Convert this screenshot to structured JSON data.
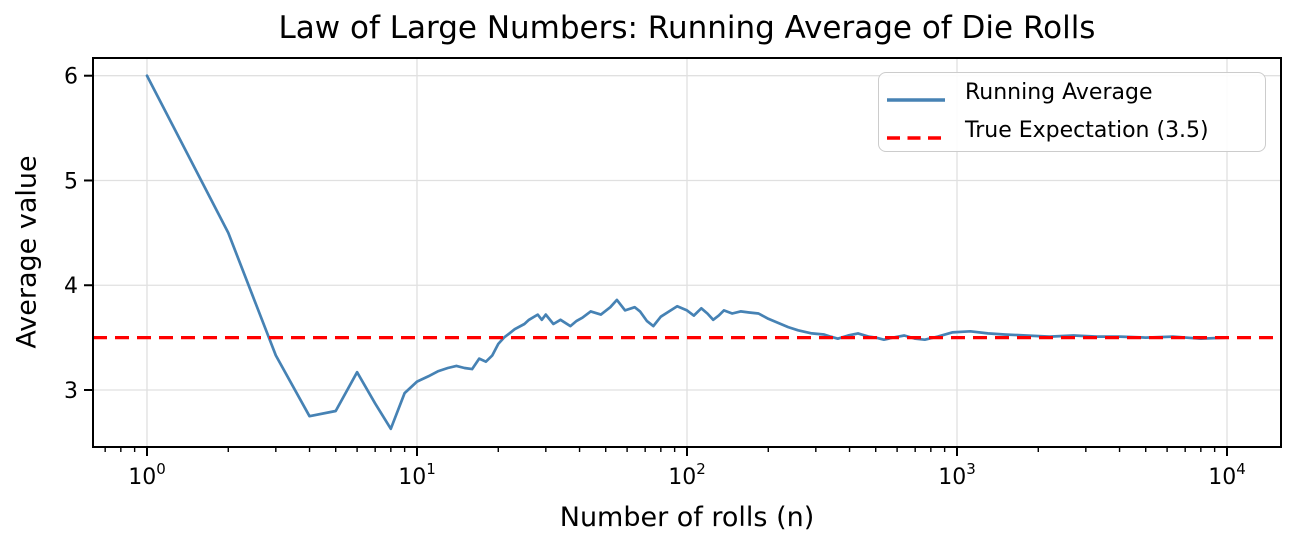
{
  "chart_data": {
    "type": "line",
    "title": "Law of Large Numbers: Running Average of Die Rolls",
    "xlabel": "Number of rolls (n)",
    "ylabel": "Average value",
    "x_scale": "log",
    "xlim": [
      0.631,
      15849
    ],
    "ylim": [
      2.456,
      6.169
    ],
    "grid": true,
    "x_ticks": [
      {
        "value": 1,
        "base": "10",
        "exp": "0"
      },
      {
        "value": 10,
        "base": "10",
        "exp": "1"
      },
      {
        "value": 100,
        "base": "10",
        "exp": "2"
      },
      {
        "value": 1000,
        "base": "10",
        "exp": "3"
      },
      {
        "value": 10000,
        "base": "10",
        "exp": "4"
      }
    ],
    "y_ticks": [
      3,
      4,
      5,
      6
    ],
    "legend": {
      "position": "upper right",
      "entries": [
        {
          "label": "Running Average",
          "color": "#4682b4",
          "line_style": "solid"
        },
        {
          "label": "True Expectation (3.5)",
          "color": "#ff0000",
          "line_style": "dashed"
        }
      ]
    },
    "series": [
      {
        "name": "Running Average",
        "color": "#4682b4",
        "line_style": "solid",
        "points": [
          [
            1,
            6.0
          ],
          [
            2,
            4.5
          ],
          [
            3,
            3.33
          ],
          [
            4,
            2.75
          ],
          [
            5,
            2.8
          ],
          [
            6,
            3.17
          ],
          [
            7,
            2.87
          ],
          [
            8,
            2.63
          ],
          [
            9,
            2.97
          ],
          [
            10,
            3.08
          ],
          [
            11,
            3.13
          ],
          [
            12,
            3.18
          ],
          [
            13,
            3.21
          ],
          [
            14,
            3.23
          ],
          [
            15,
            3.21
          ],
          [
            16,
            3.2
          ],
          [
            17,
            3.3
          ],
          [
            18,
            3.27
          ],
          [
            19,
            3.33
          ],
          [
            20,
            3.44
          ],
          [
            21,
            3.5
          ],
          [
            22,
            3.54
          ],
          [
            23,
            3.58
          ],
          [
            25,
            3.63
          ],
          [
            26,
            3.67
          ],
          [
            28,
            3.72
          ],
          [
            29,
            3.67
          ],
          [
            30,
            3.72
          ],
          [
            32,
            3.63
          ],
          [
            34,
            3.67
          ],
          [
            37,
            3.61
          ],
          [
            39,
            3.66
          ],
          [
            41,
            3.69
          ],
          [
            44,
            3.75
          ],
          [
            48,
            3.72
          ],
          [
            52,
            3.79
          ],
          [
            55,
            3.86
          ],
          [
            59,
            3.76
          ],
          [
            64,
            3.79
          ],
          [
            67,
            3.75
          ],
          [
            71,
            3.66
          ],
          [
            75,
            3.61
          ],
          [
            80,
            3.7
          ],
          [
            87,
            3.76
          ],
          [
            92,
            3.8
          ],
          [
            100,
            3.76
          ],
          [
            106,
            3.71
          ],
          [
            113,
            3.78
          ],
          [
            119,
            3.73
          ],
          [
            125,
            3.67
          ],
          [
            131,
            3.71
          ],
          [
            137,
            3.76
          ],
          [
            147,
            3.73
          ],
          [
            158,
            3.75
          ],
          [
            170,
            3.74
          ],
          [
            184,
            3.73
          ],
          [
            200,
            3.68
          ],
          [
            218,
            3.64
          ],
          [
            237,
            3.6
          ],
          [
            258,
            3.57
          ],
          [
            290,
            3.54
          ],
          [
            322,
            3.53
          ],
          [
            340,
            3.51
          ],
          [
            362,
            3.49
          ],
          [
            395,
            3.52
          ],
          [
            430,
            3.54
          ],
          [
            470,
            3.51
          ],
          [
            500,
            3.5
          ],
          [
            536,
            3.48
          ],
          [
            580,
            3.5
          ],
          [
            638,
            3.52
          ],
          [
            700,
            3.49
          ],
          [
            760,
            3.48
          ],
          [
            850,
            3.51
          ],
          [
            960,
            3.55
          ],
          [
            1120,
            3.56
          ],
          [
            1300,
            3.54
          ],
          [
            1500,
            3.53
          ],
          [
            1800,
            3.52
          ],
          [
            2200,
            3.51
          ],
          [
            2700,
            3.52
          ],
          [
            3300,
            3.51
          ],
          [
            4000,
            3.51
          ],
          [
            5000,
            3.5
          ],
          [
            6300,
            3.51
          ],
          [
            8000,
            3.49
          ],
          [
            10000,
            3.5
          ]
        ]
      },
      {
        "name": "True Expectation (3.5)",
        "color": "#ff0000",
        "line_style": "dashed",
        "constant_y": 3.5
      }
    ],
    "colors": {
      "running_average": "#4682b4",
      "true_expectation": "#ff0000",
      "grid": "#e0e0e0",
      "spine": "#000000",
      "background": "#ffffff"
    }
  }
}
